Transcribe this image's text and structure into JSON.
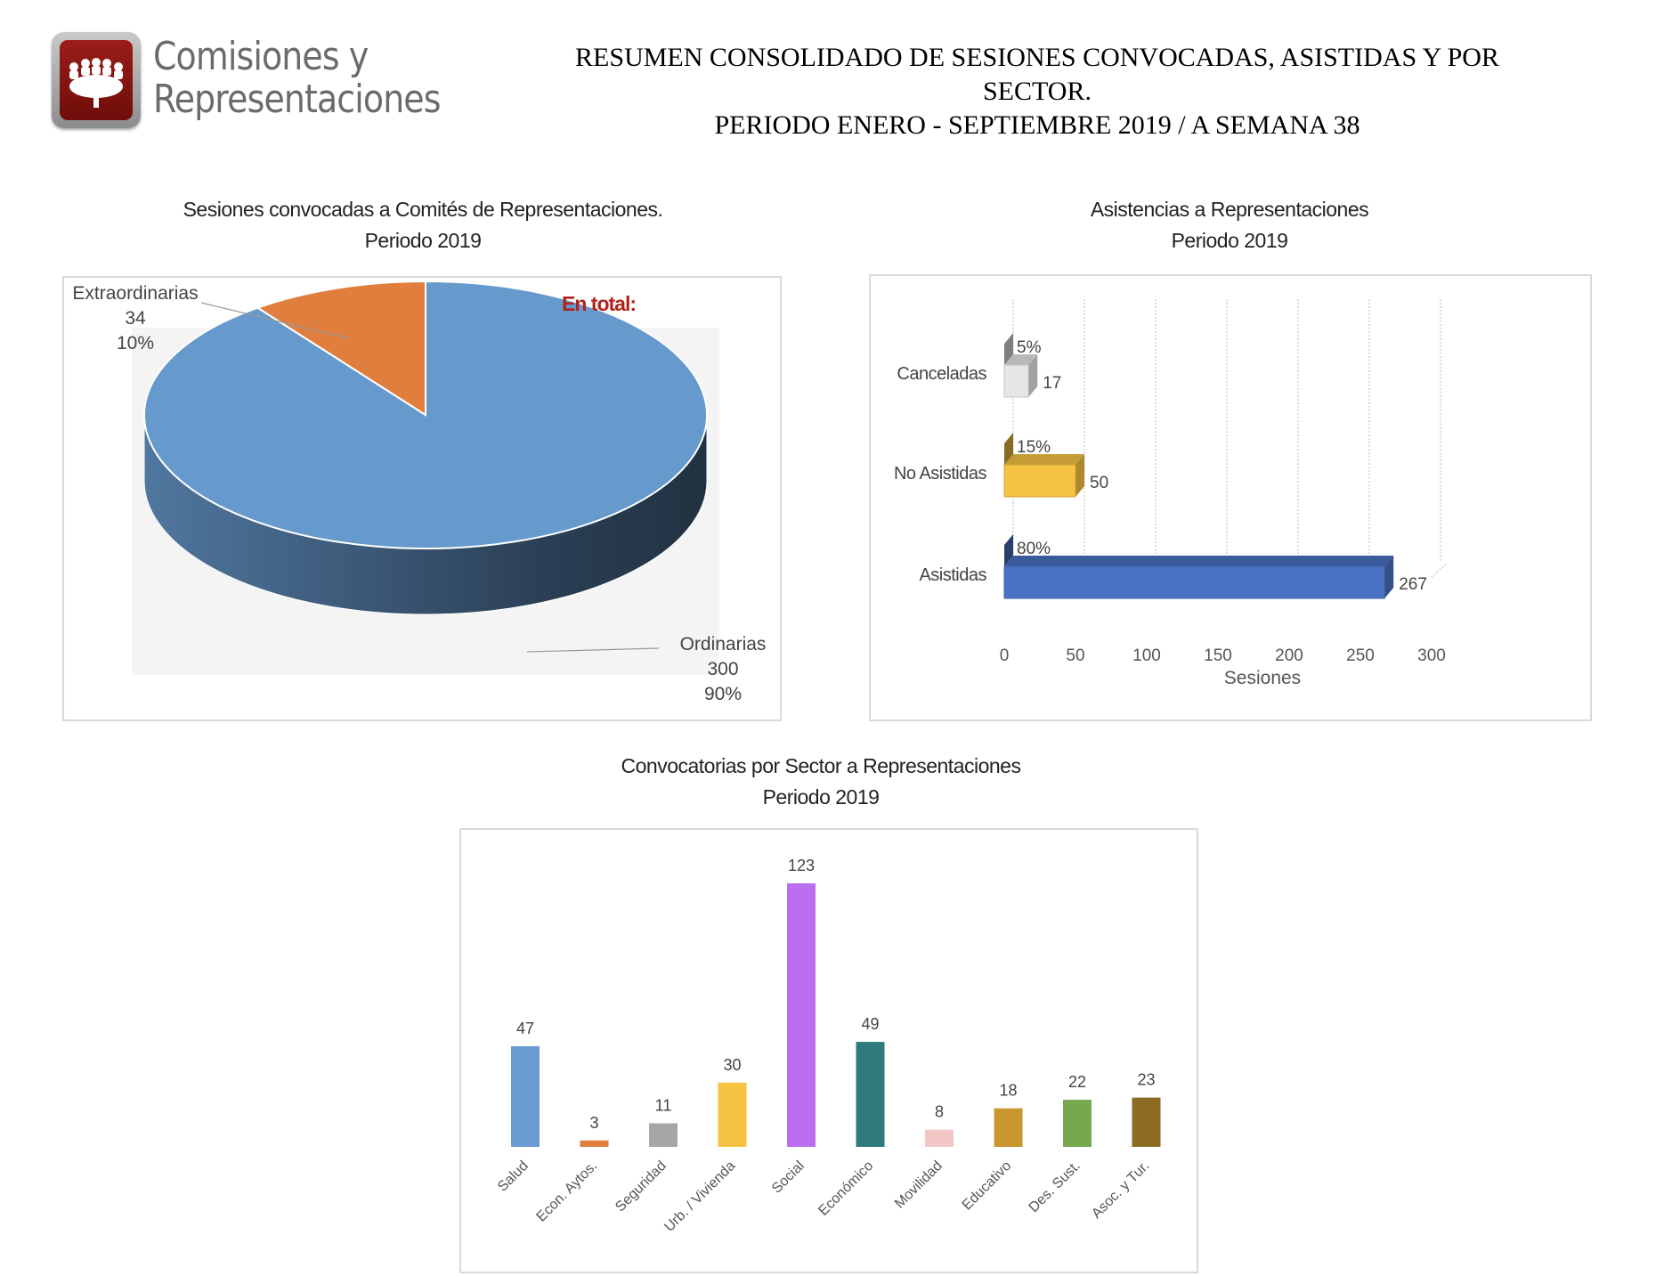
{
  "header": {
    "logo_line1": "Comisiones y",
    "logo_line2": "Representaciones",
    "title_line1": "RESUMEN CONSOLIDADO DE SESIONES CONVOCADAS, ASISTIDAS Y POR",
    "title_line2": "SECTOR.",
    "title_line3": "PERIODO ENERO - SEPTIEMBRE 2019 / A SEMANA 38"
  },
  "chart_data": [
    {
      "type": "pie",
      "title": "Sesiones convocadas a Comités de Representaciones.",
      "subtitle": "Periodo 2019",
      "annotation": "En total:",
      "slices": [
        {
          "name": "Ordinarias",
          "value": 300,
          "value_label": "300",
          "percent": "90%",
          "color": "#6699cc"
        },
        {
          "name": "Extraordinarias",
          "value": 34,
          "value_label": "34",
          "percent": "10%",
          "color": "#e07e3e"
        }
      ]
    },
    {
      "type": "bar",
      "orientation": "horizontal",
      "title": "Asistencias a Representaciones",
      "subtitle": "Periodo 2019",
      "xlabel": "Sesiones",
      "xlim": [
        0,
        300
      ],
      "xticks": [
        "0",
        "50",
        "100",
        "150",
        "200",
        "250",
        "300"
      ],
      "categories": [
        "Canceladas",
        "No Asistidas",
        "Asistidas"
      ],
      "values": [
        17,
        50,
        267
      ],
      "value_labels": [
        "17",
        "50",
        "267"
      ],
      "percents": [
        "5%",
        "15%",
        "80%"
      ],
      "colors": [
        "#e6e6e6",
        "#f5c242",
        "#4a72c4"
      ]
    },
    {
      "type": "bar",
      "title": "Convocatorias por Sector a Representaciones",
      "subtitle": "Periodo 2019",
      "categories": [
        "Salud",
        "Econ. Aytos.",
        "Seguridad",
        "Urb. / Vivienda",
        "Social",
        "Económico",
        "Movilidad",
        "Educativo",
        "Des. Sust.",
        "Asoc. y Tur."
      ],
      "values": [
        47,
        3,
        11,
        30,
        123,
        49,
        8,
        18,
        22,
        23
      ],
      "value_labels": [
        "47",
        "3",
        "11",
        "30",
        "123",
        "49",
        "8",
        "18",
        "22",
        "23"
      ],
      "colors": [
        "#6a9bd2",
        "#e07e3e",
        "#a6a6a6",
        "#f5c242",
        "#bb6ff0",
        "#2f7b7b",
        "#f4c7c7",
        "#c7962f",
        "#78a84e",
        "#8c6b22"
      ],
      "ylim": [
        0,
        123
      ]
    }
  ]
}
